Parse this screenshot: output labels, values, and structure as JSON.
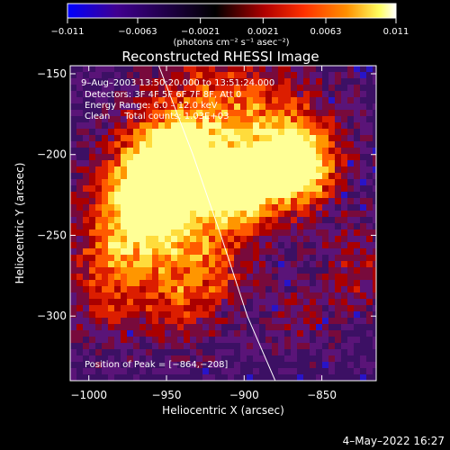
{
  "chart_data": {
    "type": "heatmap",
    "title": "Reconstructed RHESSI Image",
    "xlabel": "Heliocentric X (arcsec)",
    "ylabel": "Heliocentric Y (arcsec)",
    "xlim": [
      -1012,
      -815
    ],
    "ylim": [
      -340,
      -145
    ],
    "x_ticks": [
      -1000,
      -950,
      -900,
      -850
    ],
    "x_tick_labels": [
      "−1000",
      "−950",
      "−900",
      "−850"
    ],
    "y_ticks": [
      -150,
      -200,
      -250,
      -300
    ],
    "y_tick_labels": [
      "−150",
      "−200",
      "−250",
      "−300"
    ],
    "colorbar": {
      "range": [
        -0.011,
        0.011
      ],
      "ticks": [
        -0.011,
        -0.0063,
        -0.0021,
        0.0021,
        0.0063,
        0.011
      ],
      "tick_labels": [
        "−0.011",
        "−0.0063",
        "−0.0021",
        "0.0021",
        "0.0063",
        "0.011"
      ],
      "unit_label": "(photons cm⁻² s⁻¹ asec⁻²)",
      "colors": [
        "#0000ff",
        "#400080",
        "#000000",
        "#b00000",
        "#ff4000",
        "#ffa000",
        "#ffff80",
        "#ffffff"
      ]
    },
    "annotations": [
      "9–Aug–2003 13:50:20.000 to 13:51:24.000",
      "Detectors: 3F 4F 5F 6F 7F 8F, Att 0",
      "Energy Range: 6.0 – 12.0 keV",
      "Clean     Total counts: 1.03E+03",
      "Position of Peak = [−864,−208]"
    ],
    "peak": {
      "x": -864,
      "y": -208
    },
    "limb_curve": [
      [
        -955,
        -145
      ],
      [
        -933,
        -200
      ],
      [
        -915,
        -250
      ],
      [
        -898,
        -300
      ],
      [
        -880,
        -340
      ]
    ]
  },
  "footer": {
    "date": "4–May–2022 16:27"
  }
}
